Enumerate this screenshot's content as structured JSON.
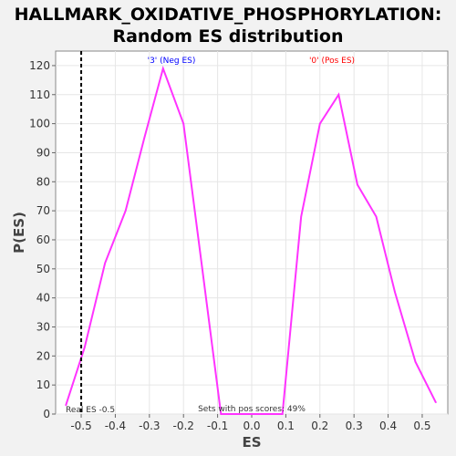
{
  "chart_data": {
    "type": "line",
    "title_line1": "HALLMARK_OXIDATIVE_PHOSPHORYLATION:",
    "title_line2": "Random ES distribution",
    "xlabel": "ES",
    "ylabel": "P(ES)",
    "xlim": [
      -0.575,
      0.575
    ],
    "ylim": [
      0,
      125
    ],
    "xticks": [
      -0.5,
      -0.4,
      -0.3,
      -0.2,
      -0.1,
      0.0,
      0.1,
      0.2,
      0.3,
      0.4,
      0.5
    ],
    "xtick_labels": [
      "-0.5",
      "-0.4",
      "-0.3",
      "-0.2",
      "-0.1",
      "0.0",
      "0.1",
      "0.2",
      "0.3",
      "0.4",
      "0.5"
    ],
    "yticks": [
      0,
      10,
      20,
      30,
      40,
      50,
      60,
      70,
      80,
      90,
      100,
      110,
      120
    ],
    "ytick_labels": [
      "0",
      "10",
      "20",
      "30",
      "40",
      "50",
      "60",
      "70",
      "80",
      "90",
      "100",
      "110",
      "120"
    ],
    "grid": true,
    "series": [
      {
        "color": "#ff33ff",
        "x": [
          -0.545,
          -0.49,
          -0.43,
          -0.37,
          -0.315,
          -0.26,
          -0.2,
          -0.145,
          -0.09,
          0.09,
          0.145,
          0.2,
          0.255,
          0.31,
          0.365,
          0.42,
          0.48,
          0.54
        ],
        "y": [
          3,
          23,
          52,
          70,
          95,
          119,
          100,
          50,
          0,
          0,
          68,
          100,
          110,
          79,
          68,
          42,
          18,
          4
        ]
      }
    ],
    "real_es_line": {
      "x": -0.5,
      "color": "#000000"
    },
    "annotations": {
      "neg_label": "'3' (Neg ES)",
      "neg_color": "#0000ff",
      "pos_label": "'0' (Pos ES)",
      "pos_color": "#ff0000",
      "real_es_label": "Real ES -0.5",
      "sets_pos_label": "Sets with pos scores: 49%"
    }
  }
}
